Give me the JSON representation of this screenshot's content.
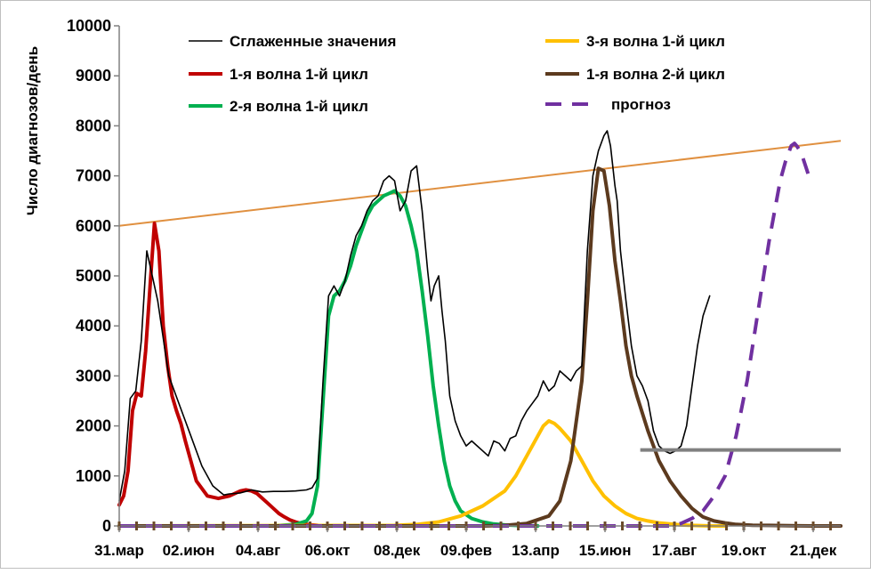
{
  "chart_data": {
    "type": "line",
    "title": "",
    "xlabel": "",
    "ylabel": "Число диагнозов/день",
    "ylim": [
      0,
      10000
    ],
    "yticks": [
      0,
      1000,
      2000,
      3000,
      4000,
      5000,
      6000,
      7000,
      8000,
      9000,
      10000
    ],
    "xlim": [
      0,
      655
    ],
    "xticks": [
      {
        "label": "31.мар",
        "x": 0
      },
      {
        "label": "02.июн",
        "x": 63
      },
      {
        "label": "04.авг",
        "x": 126
      },
      {
        "label": "06.окт",
        "x": 189
      },
      {
        "label": "08.дек",
        "x": 252
      },
      {
        "label": "09.фев",
        "x": 315
      },
      {
        "label": "13.апр",
        "x": 378
      },
      {
        "label": "15.июн",
        "x": 441
      },
      {
        "label": "17.авг",
        "x": 504
      },
      {
        "label": "19.окт",
        "x": 567
      },
      {
        "label": "21.дек",
        "x": 630
      }
    ],
    "grid": false,
    "legend_position": "top",
    "series": [
      {
        "name": "Сглаженные значения",
        "color": "#000000",
        "style": "thin",
        "x": [
          0,
          5,
          10,
          15,
          20,
          25,
          35,
          45,
          55,
          65,
          75,
          85,
          95,
          100,
          105,
          110,
          115,
          120,
          125,
          130,
          140,
          150,
          160,
          170,
          175,
          180,
          185,
          190,
          195,
          200,
          205,
          210,
          215,
          220,
          225,
          230,
          235,
          240,
          245,
          250,
          255,
          260,
          265,
          270,
          275,
          280,
          283,
          286,
          290,
          293,
          296,
          300,
          305,
          310,
          315,
          320,
          325,
          330,
          335,
          340,
          345,
          350,
          355,
          360,
          365,
          370,
          375,
          380,
          385,
          390,
          395,
          400,
          405,
          410,
          415,
          420,
          425,
          430,
          435,
          440,
          443,
          446,
          448,
          450,
          452,
          455,
          460,
          465,
          470,
          475,
          480,
          485,
          490,
          495,
          500,
          505,
          510,
          515,
          520,
          525,
          530,
          536
        ],
        "y": [
          500,
          1100,
          2550,
          2700,
          3700,
          5500,
          4500,
          3000,
          2400,
          1800,
          1200,
          800,
          620,
          640,
          650,
          660,
          690,
          720,
          700,
          680,
          690,
          690,
          700,
          720,
          760,
          950,
          2900,
          4600,
          4800,
          4600,
          4900,
          5400,
          5800,
          6000,
          6300,
          6500,
          6600,
          6900,
          7000,
          6900,
          6300,
          6500,
          7100,
          7200,
          6300,
          5100,
          4500,
          4800,
          5000,
          4300,
          3700,
          2600,
          2100,
          1800,
          1600,
          1700,
          1600,
          1500,
          1400,
          1700,
          1650,
          1500,
          1750,
          1800,
          2100,
          2300,
          2450,
          2600,
          2900,
          2700,
          2800,
          3100,
          3000,
          2900,
          3100,
          3200,
          5500,
          7000,
          7500,
          7800,
          7900,
          7600,
          7200,
          6800,
          6500,
          5500,
          4500,
          3600,
          3000,
          2800,
          2500,
          1900,
          1600,
          1500,
          1450,
          1500,
          1600,
          2000,
          2800,
          3600,
          4200,
          4600
        ]
      },
      {
        "name": "1-я волна 1-й цикл",
        "color": "#c00000",
        "style": "thick",
        "x": [
          0,
          4,
          8,
          12,
          16,
          20,
          24,
          28,
          32,
          36,
          40,
          44,
          48,
          52,
          56,
          60,
          65,
          70,
          80,
          90,
          100,
          110,
          115,
          120,
          125,
          130,
          135,
          140,
          145,
          150,
          155,
          160,
          165,
          170,
          175,
          180
        ],
        "y": [
          420,
          600,
          1100,
          2300,
          2650,
          2600,
          3500,
          4800,
          6050,
          5500,
          4000,
          3200,
          2600,
          2300,
          2050,
          1700,
          1300,
          900,
          600,
          550,
          600,
          700,
          720,
          700,
          650,
          550,
          450,
          350,
          250,
          180,
          120,
          80,
          50,
          30,
          20,
          10
        ]
      },
      {
        "name": "2-я волна 1-й цикл",
        "color": "#00b050",
        "style": "thick",
        "x": [
          0,
          140,
          160,
          170,
          175,
          180,
          185,
          190,
          195,
          200,
          205,
          210,
          215,
          220,
          225,
          230,
          235,
          240,
          245,
          250,
          255,
          260,
          265,
          270,
          275,
          280,
          285,
          290,
          295,
          300,
          305,
          310,
          320,
          330,
          340,
          350,
          360,
          370,
          380
        ],
        "y": [
          0,
          0,
          30,
          100,
          250,
          800,
          2500,
          4200,
          4600,
          4700,
          4900,
          5200,
          5600,
          5900,
          6200,
          6400,
          6500,
          6600,
          6650,
          6700,
          6600,
          6400,
          6000,
          5500,
          4700,
          3800,
          2800,
          2000,
          1300,
          800,
          500,
          300,
          150,
          80,
          40,
          20,
          10,
          5,
          0
        ]
      },
      {
        "name": "3-я волна 1-й цикл",
        "color": "#ffc000",
        "style": "thick",
        "x": [
          0,
          250,
          270,
          290,
          310,
          330,
          350,
          360,
          370,
          380,
          385,
          390,
          395,
          400,
          410,
          420,
          430,
          440,
          450,
          460,
          470,
          480,
          490,
          500,
          510,
          520,
          530,
          540,
          550
        ],
        "y": [
          0,
          10,
          30,
          80,
          200,
          400,
          700,
          1000,
          1400,
          1800,
          2000,
          2100,
          2050,
          1950,
          1700,
          1300,
          900,
          600,
          400,
          250,
          150,
          100,
          60,
          40,
          20,
          10,
          5,
          0,
          0
        ]
      },
      {
        "name": "1-я волна 2-й цикл",
        "color": "#5c3a1e",
        "style": "thick",
        "x": [
          0,
          330,
          350,
          370,
          390,
          400,
          410,
          420,
          425,
          430,
          435,
          440,
          445,
          450,
          455,
          460,
          465,
          470,
          480,
          490,
          500,
          510,
          520,
          530,
          540,
          550,
          560,
          575,
          590,
          610,
          630,
          655
        ],
        "y": [
          0,
          0,
          10,
          50,
          200,
          500,
          1300,
          2900,
          4500,
          6300,
          7150,
          7100,
          6400,
          5300,
          4500,
          3600,
          3000,
          2600,
          1900,
          1300,
          900,
          600,
          350,
          180,
          100,
          60,
          30,
          15,
          10,
          5,
          0,
          0
        ]
      },
      {
        "name": "прогноз",
        "color": "#7030a0",
        "style": "dashed",
        "x": [
          0,
          500,
          510,
          520,
          530,
          540,
          550,
          560,
          570,
          580,
          590,
          600,
          605,
          610,
          613,
          615,
          618,
          620,
          623,
          626,
          630
        ],
        "y": [
          0,
          0,
          50,
          150,
          300,
          600,
          1000,
          1800,
          2900,
          4300,
          5700,
          6900,
          7300,
          7600,
          7650,
          7600,
          7500,
          7400,
          7200,
          7000,
          6950
        ]
      }
    ],
    "trend_line": {
      "color": "#e09040",
      "x": [
        0,
        655
      ],
      "y": [
        6000,
        7700
      ]
    },
    "threshold_line": {
      "color": "#808080",
      "x": [
        473,
        655
      ],
      "y": [
        1520,
        1520
      ]
    }
  }
}
